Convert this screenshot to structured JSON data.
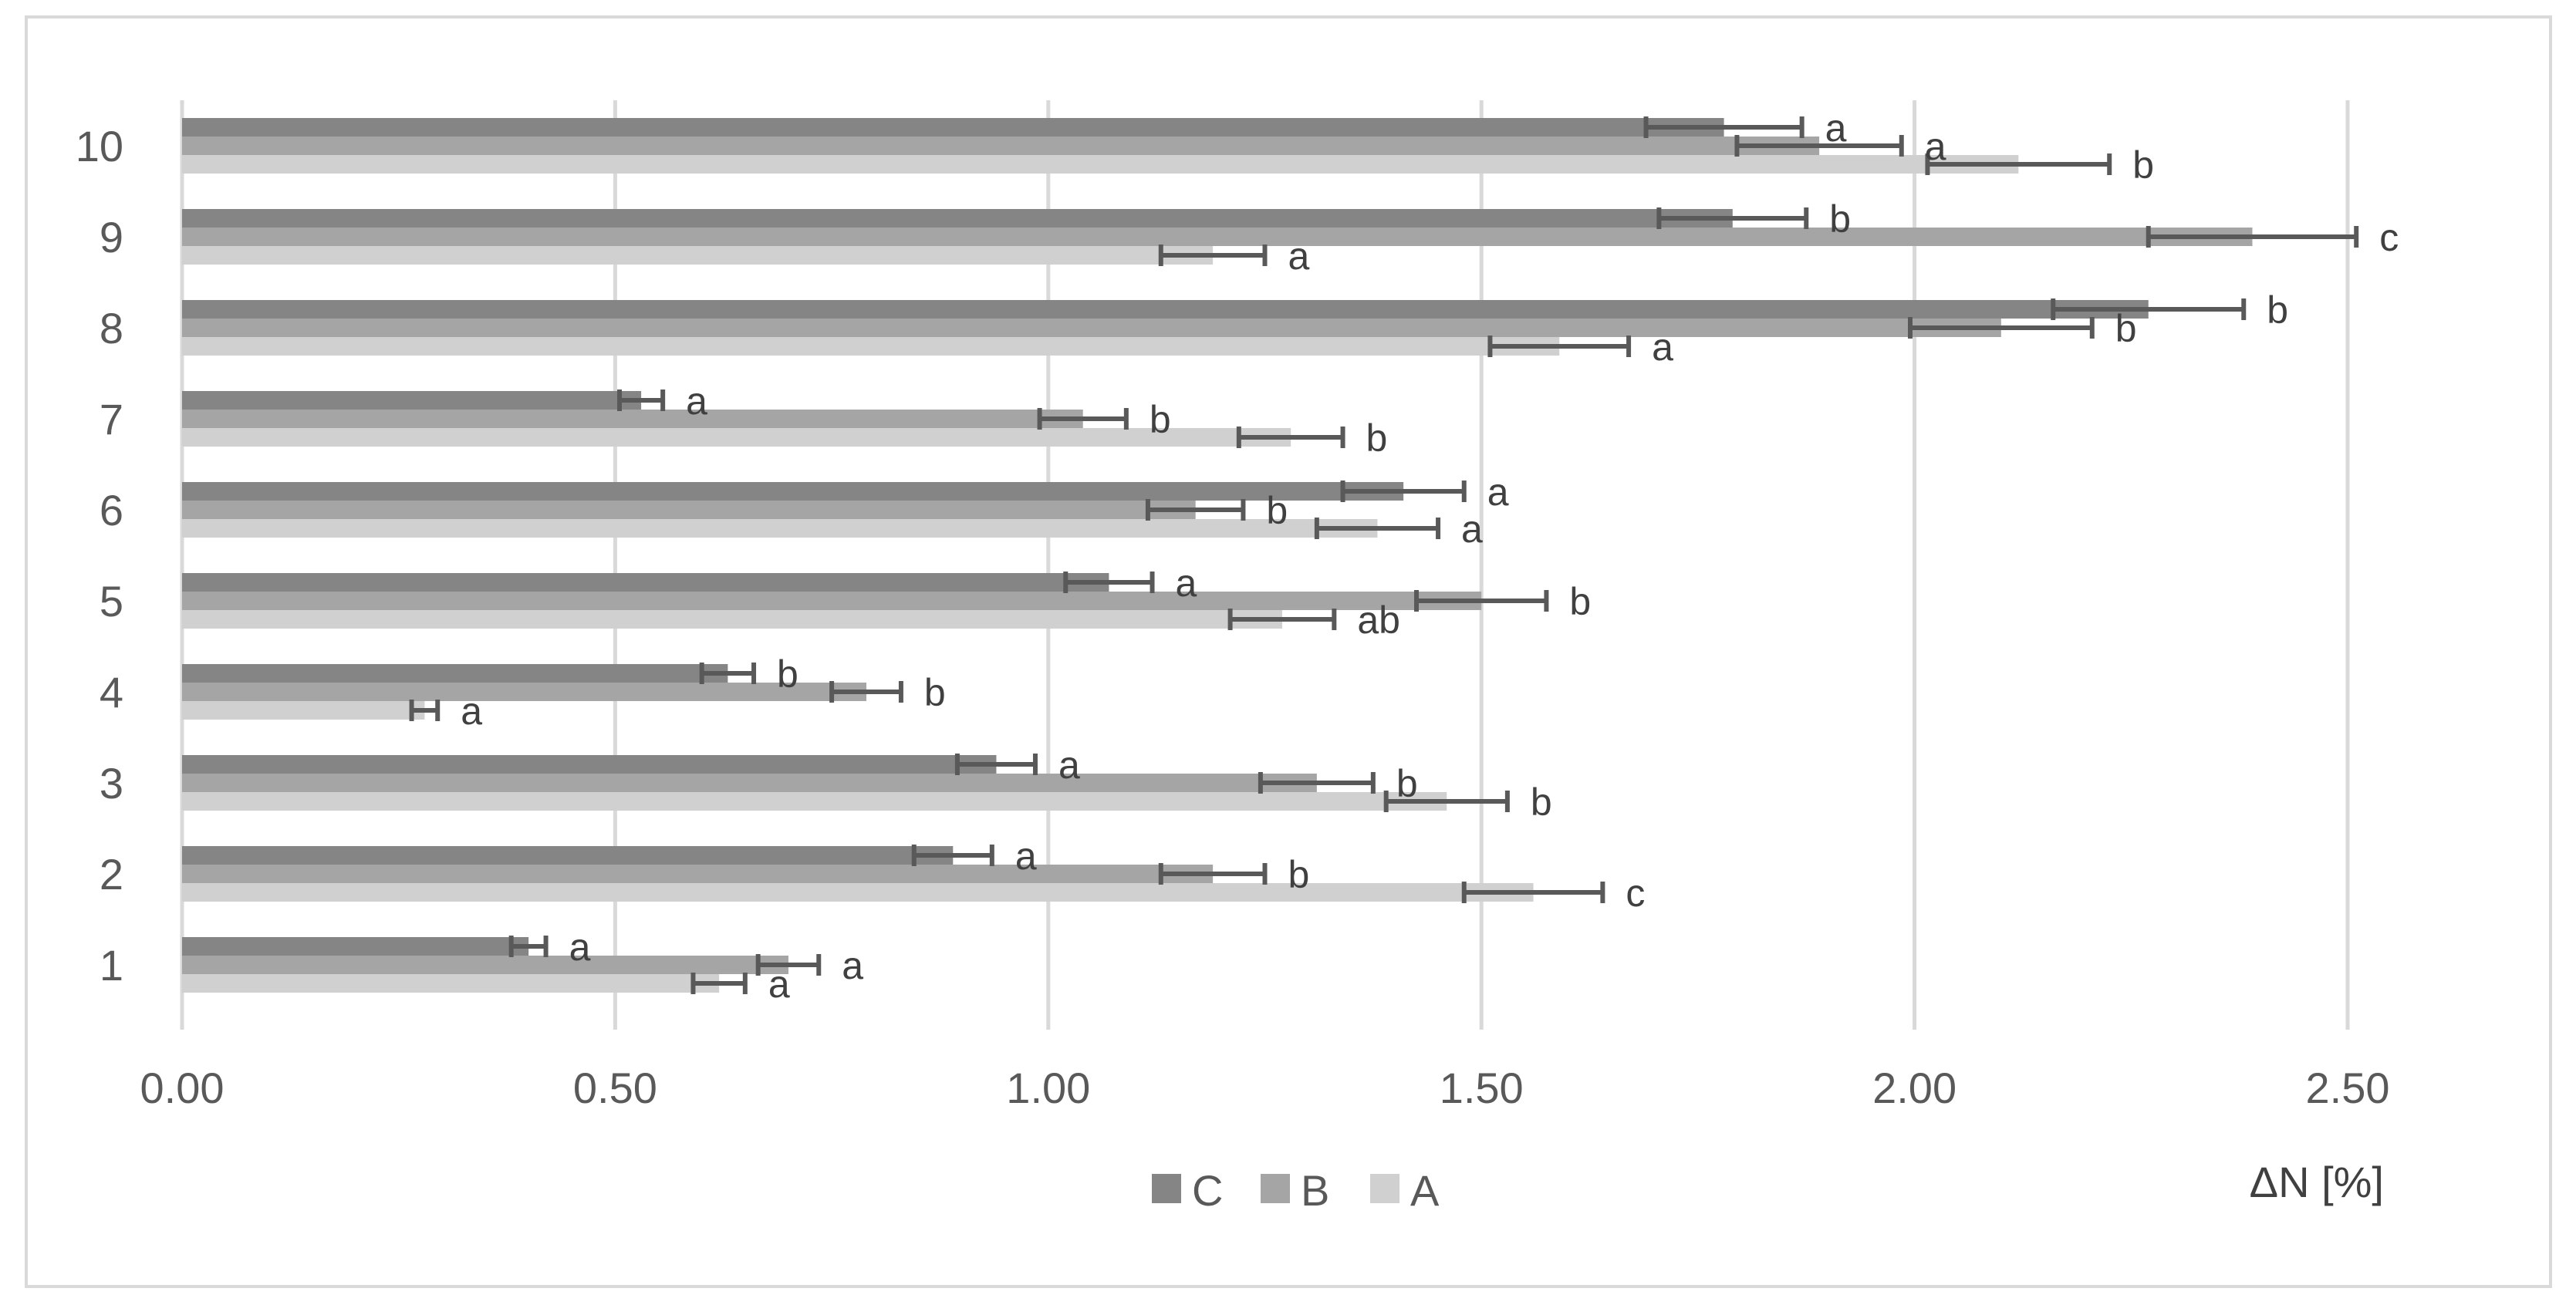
{
  "chart_data": {
    "type": "bar",
    "orientation": "horizontal",
    "categories": [
      "1",
      "2",
      "3",
      "4",
      "5",
      "6",
      "7",
      "8",
      "9",
      "10"
    ],
    "series": [
      {
        "name": "C",
        "color": "#858585",
        "values": [
          0.4,
          0.89,
          0.94,
          0.63,
          1.07,
          1.41,
          0.53,
          2.27,
          1.79,
          1.78
        ],
        "errors": [
          0.02,
          0.045,
          0.045,
          0.03,
          0.05,
          0.07,
          0.025,
          0.11,
          0.085,
          0.09
        ],
        "sig": [
          "a",
          "a",
          "a",
          "b",
          "a",
          "a",
          "a",
          "b",
          "b",
          "a"
        ]
      },
      {
        "name": "B",
        "color": "#a5a5a5",
        "values": [
          0.7,
          1.19,
          1.31,
          0.79,
          1.5,
          1.17,
          1.04,
          2.1,
          2.39,
          1.89
        ],
        "errors": [
          0.035,
          0.06,
          0.065,
          0.04,
          0.075,
          0.055,
          0.05,
          0.105,
          0.12,
          0.095
        ],
        "sig": [
          "a",
          "b",
          "b",
          "b",
          "b",
          "b",
          "b",
          "b",
          "c",
          "a"
        ]
      },
      {
        "name": "A",
        "color": "#d0d0d0",
        "values": [
          0.62,
          1.56,
          1.46,
          0.28,
          1.27,
          1.38,
          1.28,
          1.59,
          1.19,
          2.12
        ],
        "errors": [
          0.03,
          0.08,
          0.07,
          0.015,
          0.06,
          0.07,
          0.06,
          0.08,
          0.06,
          0.105
        ],
        "sig": [
          "a",
          "c",
          "b",
          "a",
          "ab",
          "a",
          "b",
          "a",
          "a",
          "b"
        ]
      }
    ],
    "xlim": [
      0,
      2.5
    ],
    "xticks": [
      "0.00",
      "0.50",
      "1.00",
      "1.50",
      "2.00",
      "2.50"
    ],
    "xtick_values": [
      0,
      0.5,
      1.0,
      1.5,
      2.0,
      2.5
    ],
    "xlabel": "ΔN [%]",
    "title": "",
    "legend": {
      "placement": "bottom-center",
      "order": [
        "C",
        "B",
        "A"
      ]
    },
    "grid": {
      "vertical": true,
      "color": "#d9d9d9"
    },
    "border_color": "#d9d9d9",
    "error_bar_color": "#595959"
  }
}
